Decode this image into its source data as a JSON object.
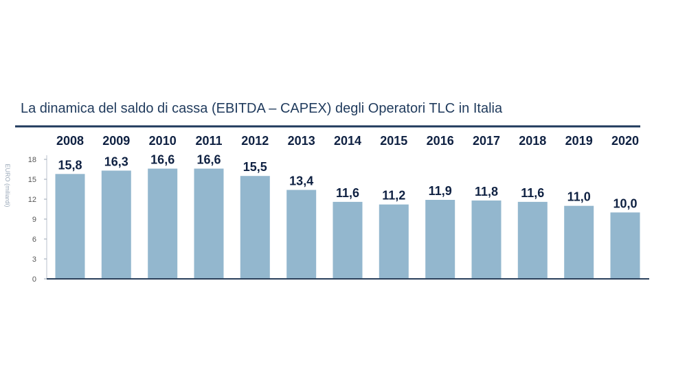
{
  "chart_data": {
    "type": "bar",
    "title": "La dinamica del saldo di cassa (EBITDA – CAPEX) degli Operatori TLC in Italia",
    "ylabel": "EURO (miliardi)",
    "categories": [
      "2008",
      "2009",
      "2010",
      "2011",
      "2012",
      "2013",
      "2014",
      "2015",
      "2016",
      "2017",
      "2018",
      "2019",
      "2020"
    ],
    "values": [
      15.8,
      16.3,
      16.6,
      16.6,
      15.5,
      13.4,
      11.6,
      11.2,
      11.9,
      11.8,
      11.6,
      11.0,
      10.0
    ],
    "value_labels": [
      "15,8",
      "16,3",
      "16,6",
      "16,6",
      "15,5",
      "13,4",
      "11,6",
      "11,2",
      "11,9",
      "11,8",
      "11,6",
      "11,0",
      "10,0"
    ],
    "yticks": [
      "0",
      "3",
      "6",
      "9",
      "12",
      "15",
      "18"
    ],
    "ylim": [
      0,
      18
    ],
    "grid": false,
    "legend": "none",
    "colors": {
      "bar": "#93b7ce",
      "title": "#1f3a5c",
      "labels": "#0f2142",
      "rule": "#1f3a5c",
      "axis": "#2a3f5a"
    }
  }
}
